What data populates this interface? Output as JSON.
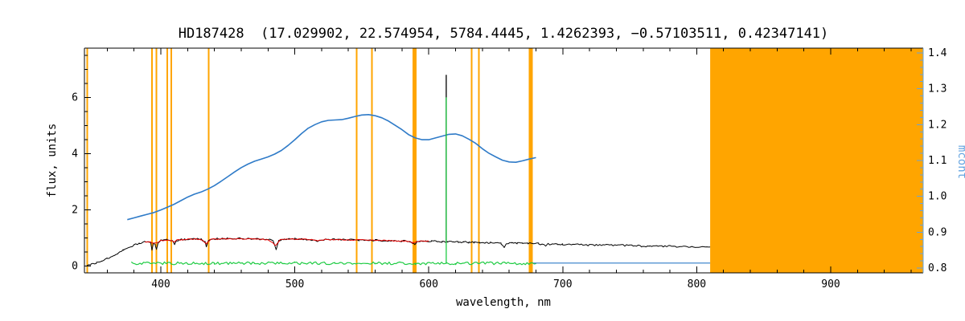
{
  "colors": {
    "background": "#FFFFFF",
    "axis": "#000000",
    "marker": "#FFA500",
    "spectrum": "#000000",
    "fit": "#E60000",
    "residual": "#1FCC44",
    "mcont": "#2F7BC8",
    "mcont_axis": "#64A4E0"
  },
  "chart_data": {
    "type": "line",
    "title": "HD187428  (17.029902, 22.574954, 5784.4445, 1.4262393, −0.57103511, 0.42347141)",
    "xlabel": "wavelength, nm",
    "ylabel_left": "flux, units",
    "ylabel_right": "mcont",
    "x_range": [
      343,
      969
    ],
    "flux_range": [
      -0.25,
      7.75
    ],
    "mcont_range": [
      0.7866,
      1.4134
    ],
    "x_ticks": [
      400,
      500,
      600,
      700,
      800,
      900
    ],
    "x_minor_step": 20,
    "flux_ticks": [
      0,
      2,
      4,
      6
    ],
    "flux_minor_step": 0.5,
    "mcont_ticks": [
      0.8,
      0.9,
      1.0,
      1.1,
      1.2,
      1.3,
      1.4
    ],
    "mcont_minor_step": 0.02,
    "grid": false,
    "legend": false,
    "masked_band": {
      "start": 810,
      "end": 969
    },
    "line_markers": [
      {
        "wl": 345.0,
        "w": 2
      },
      {
        "wl": 393.4,
        "w": 2
      },
      {
        "wl": 396.8,
        "w": 2
      },
      {
        "wl": 404.7,
        "w": 2
      },
      {
        "wl": 407.8,
        "w": 2
      },
      {
        "wl": 435.8,
        "w": 2
      },
      {
        "wl": 546.1,
        "w": 2
      },
      {
        "wl": 557.7,
        "w": 2
      },
      {
        "wl": 589.3,
        "w": 5
      },
      {
        "wl": 632.0,
        "w": 2
      },
      {
        "wl": 637.5,
        "w": 2
      },
      {
        "wl": 676.0,
        "w": 5
      }
    ],
    "series": [
      {
        "id": "observed-spectrum",
        "name": "observed spectrum",
        "axis": "flux",
        "color_key": "spectrum",
        "noise": 0.03,
        "width": 1,
        "points": [
          [
            345,
            0.03
          ],
          [
            348,
            0.06
          ],
          [
            352,
            0.1
          ],
          [
            356,
            0.17
          ],
          [
            360,
            0.26
          ],
          [
            364,
            0.36
          ],
          [
            368,
            0.46
          ],
          [
            372,
            0.56
          ],
          [
            376,
            0.65
          ],
          [
            380,
            0.73
          ],
          [
            384,
            0.8
          ],
          [
            388,
            0.86
          ],
          [
            391,
            0.87
          ],
          [
            392.5,
            0.8
          ],
          [
            393.4,
            0.58
          ],
          [
            394.5,
            0.82
          ],
          [
            396,
            0.72
          ],
          [
            396.8,
            0.6
          ],
          [
            398,
            0.84
          ],
          [
            400,
            0.9
          ],
          [
            403,
            0.92
          ],
          [
            406,
            0.93
          ],
          [
            409,
            0.86
          ],
          [
            410.3,
            0.76
          ],
          [
            411.5,
            0.89
          ],
          [
            414,
            0.93
          ],
          [
            418,
            0.94
          ],
          [
            422,
            0.95
          ],
          [
            426,
            0.95
          ],
          [
            430,
            0.95
          ],
          [
            433,
            0.86
          ],
          [
            434,
            0.68
          ],
          [
            435.5,
            0.89
          ],
          [
            438,
            0.95
          ],
          [
            442,
            0.96
          ],
          [
            446,
            0.96
          ],
          [
            450,
            0.97
          ],
          [
            455,
            0.97
          ],
          [
            460,
            0.97
          ],
          [
            465,
            0.96
          ],
          [
            470,
            0.96
          ],
          [
            475,
            0.95
          ],
          [
            480,
            0.94
          ],
          [
            484,
            0.89
          ],
          [
            486.1,
            0.56
          ],
          [
            488,
            0.91
          ],
          [
            492,
            0.95
          ],
          [
            496,
            0.96
          ],
          [
            500,
            0.96
          ],
          [
            505,
            0.95
          ],
          [
            510,
            0.94
          ],
          [
            515,
            0.92
          ],
          [
            517,
            0.88
          ],
          [
            519,
            0.93
          ],
          [
            524,
            0.94
          ],
          [
            528,
            0.94
          ],
          [
            532,
            0.94
          ],
          [
            536,
            0.93
          ],
          [
            540,
            0.93
          ],
          [
            544,
            0.93
          ],
          [
            548,
            0.92
          ],
          [
            552,
            0.92
          ],
          [
            556,
            0.91
          ],
          [
            560,
            0.91
          ],
          [
            564,
            0.9
          ],
          [
            568,
            0.9
          ],
          [
            572,
            0.9
          ],
          [
            576,
            0.89
          ],
          [
            580,
            0.89
          ],
          [
            584,
            0.88
          ],
          [
            588,
            0.82
          ],
          [
            589.5,
            0.78
          ],
          [
            591,
            0.86
          ],
          [
            594,
            0.88
          ],
          [
            598,
            0.88
          ],
          [
            602,
            0.87
          ],
          [
            606,
            0.87
          ],
          [
            610,
            0.86
          ],
          [
            614,
            0.86
          ],
          [
            618,
            0.86
          ],
          [
            622,
            0.85
          ],
          [
            626,
            0.85
          ],
          [
            630,
            0.84
          ],
          [
            634,
            0.84
          ],
          [
            638,
            0.83
          ],
          [
            642,
            0.83
          ],
          [
            646,
            0.82
          ],
          [
            650,
            0.82
          ],
          [
            654,
            0.79
          ],
          [
            656.3,
            0.68
          ],
          [
            658,
            0.8
          ],
          [
            662,
            0.81
          ],
          [
            666,
            0.81
          ],
          [
            670,
            0.8
          ],
          [
            674,
            0.8
          ],
          [
            678,
            0.79
          ],
          [
            682,
            0.79
          ],
          [
            686,
            0.76
          ],
          [
            687.5,
            0.72
          ],
          [
            689,
            0.77
          ],
          [
            692,
            0.78
          ],
          [
            696,
            0.77
          ],
          [
            700,
            0.77
          ],
          [
            705,
            0.76
          ],
          [
            710,
            0.76
          ],
          [
            715,
            0.75
          ],
          [
            720,
            0.74
          ],
          [
            725,
            0.74
          ],
          [
            730,
            0.74
          ],
          [
            735,
            0.73
          ],
          [
            740,
            0.73
          ],
          [
            745,
            0.73
          ],
          [
            750,
            0.72
          ],
          [
            755,
            0.72
          ],
          [
            759,
            0.69
          ],
          [
            762,
            0.67
          ],
          [
            765,
            0.71
          ],
          [
            770,
            0.71
          ],
          [
            775,
            0.7
          ],
          [
            780,
            0.7
          ],
          [
            785,
            0.69
          ],
          [
            790,
            0.69
          ],
          [
            795,
            0.68
          ],
          [
            800,
            0.68
          ],
          [
            805,
            0.67
          ],
          [
            810,
            0.67
          ]
        ]
      },
      {
        "id": "continuum-fit",
        "name": "continuum fit",
        "axis": "flux",
        "color_key": "fit",
        "noise": 0.02,
        "width": 1,
        "points": [
          [
            388,
            0.87
          ],
          [
            392,
            0.85
          ],
          [
            394,
            0.82
          ],
          [
            397,
            0.81
          ],
          [
            400,
            0.9
          ],
          [
            404,
            0.92
          ],
          [
            408,
            0.9
          ],
          [
            410,
            0.85
          ],
          [
            412,
            0.91
          ],
          [
            416,
            0.93
          ],
          [
            420,
            0.94
          ],
          [
            425,
            0.95
          ],
          [
            430,
            0.94
          ],
          [
            434,
            0.8
          ],
          [
            437,
            0.94
          ],
          [
            442,
            0.95
          ],
          [
            446,
            0.96
          ],
          [
            450,
            0.96
          ],
          [
            455,
            0.96
          ],
          [
            460,
            0.96
          ],
          [
            465,
            0.96
          ],
          [
            470,
            0.95
          ],
          [
            475,
            0.95
          ],
          [
            480,
            0.93
          ],
          [
            486,
            0.72
          ],
          [
            489,
            0.93
          ],
          [
            494,
            0.95
          ],
          [
            498,
            0.95
          ],
          [
            502,
            0.95
          ],
          [
            506,
            0.94
          ],
          [
            510,
            0.94
          ],
          [
            515,
            0.91
          ],
          [
            517,
            0.89
          ],
          [
            520,
            0.93
          ],
          [
            525,
            0.94
          ],
          [
            530,
            0.93
          ],
          [
            535,
            0.93
          ],
          [
            540,
            0.92
          ],
          [
            545,
            0.92
          ],
          [
            550,
            0.92
          ],
          [
            555,
            0.91
          ],
          [
            560,
            0.91
          ],
          [
            565,
            0.9
          ],
          [
            570,
            0.9
          ],
          [
            575,
            0.89
          ],
          [
            580,
            0.88
          ],
          [
            584,
            0.87
          ],
          [
            588,
            0.82
          ],
          [
            590,
            0.84
          ],
          [
            594,
            0.87
          ],
          [
            598,
            0.87
          ],
          [
            600,
            0.87
          ]
        ]
      },
      {
        "id": "residual-curve",
        "name": "residual",
        "axis": "flux",
        "color_key": "residual",
        "noise": 0.05,
        "width": 1.2,
        "points": [
          [
            378,
            0.09
          ],
          [
            410,
            0.09
          ],
          [
            440,
            0.095
          ],
          [
            470,
            0.09
          ],
          [
            500,
            0.092
          ],
          [
            530,
            0.09
          ],
          [
            560,
            0.093
          ],
          [
            590,
            0.09
          ],
          [
            620,
            0.09
          ],
          [
            650,
            0.092
          ],
          [
            680,
            0.09
          ]
        ]
      },
      {
        "id": "mcont-baseline",
        "name": "mcont baseline",
        "axis": "mcont",
        "color_key": "mcont",
        "noise": 0,
        "width": 1.2,
        "points": [
          [
            678,
            0.814
          ],
          [
            810,
            0.814
          ]
        ]
      },
      {
        "id": "mcont-curve",
        "name": "mcont",
        "axis": "mcont",
        "color_key": "mcont",
        "noise": 0,
        "width": 1.6,
        "points": [
          [
            375,
            0.935
          ],
          [
            380,
            0.94
          ],
          [
            385,
            0.945
          ],
          [
            390,
            0.95
          ],
          [
            395,
            0.955
          ],
          [
            400,
            0.962
          ],
          [
            405,
            0.97
          ],
          [
            410,
            0.978
          ],
          [
            415,
            0.988
          ],
          [
            420,
            0.998
          ],
          [
            425,
            1.006
          ],
          [
            430,
            1.012
          ],
          [
            435,
            1.02
          ],
          [
            440,
            1.03
          ],
          [
            445,
            1.042
          ],
          [
            450,
            1.055
          ],
          [
            455,
            1.068
          ],
          [
            460,
            1.08
          ],
          [
            465,
            1.09
          ],
          [
            470,
            1.098
          ],
          [
            475,
            1.104
          ],
          [
            480,
            1.11
          ],
          [
            485,
            1.118
          ],
          [
            490,
            1.128
          ],
          [
            495,
            1.142
          ],
          [
            500,
            1.158
          ],
          [
            505,
            1.175
          ],
          [
            510,
            1.19
          ],
          [
            515,
            1.2
          ],
          [
            520,
            1.208
          ],
          [
            525,
            1.212
          ],
          [
            530,
            1.213
          ],
          [
            535,
            1.214
          ],
          [
            540,
            1.218
          ],
          [
            545,
            1.223
          ],
          [
            550,
            1.227
          ],
          [
            555,
            1.228
          ],
          [
            560,
            1.225
          ],
          [
            565,
            1.219
          ],
          [
            570,
            1.21
          ],
          [
            575,
            1.198
          ],
          [
            580,
            1.186
          ],
          [
            585,
            1.172
          ],
          [
            590,
            1.163
          ],
          [
            595,
            1.158
          ],
          [
            600,
            1.158
          ],
          [
            605,
            1.163
          ],
          [
            610,
            1.168
          ],
          [
            615,
            1.173
          ],
          [
            620,
            1.174
          ],
          [
            625,
            1.169
          ],
          [
            630,
            1.159
          ],
          [
            635,
            1.148
          ],
          [
            640,
            1.133
          ],
          [
            645,
            1.12
          ],
          [
            650,
            1.11
          ],
          [
            655,
            1.101
          ],
          [
            660,
            1.096
          ],
          [
            665,
            1.095
          ],
          [
            670,
            1.099
          ],
          [
            675,
            1.104
          ],
          [
            680,
            1.108
          ]
        ]
      }
    ],
    "spikes": [
      {
        "wl": 613,
        "from": 0.88,
        "to": 6.8,
        "color_key": "spectrum"
      },
      {
        "wl": 613,
        "from": 0.07,
        "to": 6.0,
        "color_key": "residual"
      }
    ]
  }
}
